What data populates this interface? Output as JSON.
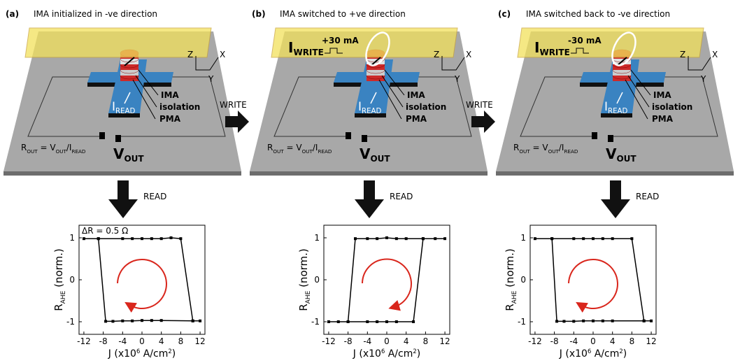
{
  "panels": [
    {
      "label": "(a)",
      "title": "IMA initialized in -ve direction",
      "ima": "IMA",
      "isolation": "isolation",
      "pma": "PMA",
      "i_read": [
        "I",
        "READ"
      ],
      "r_out": [
        "R",
        "OUT",
        " = V",
        "OUT",
        "/I",
        "READ"
      ],
      "v_out": [
        "V",
        "OUT"
      ],
      "axes": [
        "Z",
        "X",
        "Y"
      ],
      "read": "READ"
    },
    {
      "label": "(b)",
      "title": "IMA switched to +ve direction",
      "ima": "IMA",
      "isolation": "isolation",
      "pma": "PMA",
      "i_read": [
        "I",
        "READ"
      ],
      "r_out": [
        "R",
        "OUT",
        " = V",
        "OUT",
        "/I",
        "READ"
      ],
      "v_out": [
        "V",
        "OUT"
      ],
      "axes": [
        "Z",
        "X",
        "Y"
      ],
      "read": "READ",
      "write": "WRITE",
      "i_write": [
        "I",
        "WRITE"
      ],
      "current": "+30 mA"
    },
    {
      "label": "(c)",
      "title": "IMA switched back to -ve direction",
      "ima": "IMA",
      "isolation": "isolation",
      "pma": "PMA",
      "i_read": [
        "I",
        "READ"
      ],
      "r_out": [
        "R",
        "OUT",
        " = V",
        "OUT",
        "/I",
        "READ"
      ],
      "v_out": [
        "V",
        "OUT"
      ],
      "axes": [
        "Z",
        "X",
        "Y"
      ],
      "read": "READ",
      "write": "WRITE",
      "i_write": [
        "I",
        "WRITE"
      ],
      "current": "-30 mA"
    }
  ],
  "chart_data": [
    {
      "type": "line",
      "color": "#000000",
      "annotation": "ΔR = 0.5 Ω",
      "y_label": [
        "R",
        "AHE",
        " (norm.)"
      ],
      "x_label": [
        "J (x10",
        "6",
        " A/cm",
        "2",
        ")"
      ],
      "x": [
        -12,
        -9,
        -4,
        -2,
        0,
        2,
        4,
        6,
        8,
        10.5,
        12,
        10.5,
        4,
        2,
        0,
        -2,
        -4,
        -6,
        -7.5,
        -9
      ],
      "values": [
        0.98,
        0.98,
        0.98,
        0.98,
        0.98,
        0.98,
        0.98,
        1.0,
        0.98,
        -0.98,
        -0.98,
        -0.98,
        -0.97,
        -0.97,
        -0.97,
        -0.98,
        -0.98,
        -0.99,
        -0.99,
        0.98
      ],
      "xlim": [
        -13,
        13
      ],
      "ylim": [
        -1.3,
        1.3
      ],
      "xticks": [
        -12,
        -8,
        -4,
        0,
        4,
        8,
        12
      ],
      "yticks": [
        -1,
        0,
        1
      ]
    },
    {
      "type": "line",
      "color": "#000000",
      "y_label": [
        "R",
        "AHE",
        " (norm.)"
      ],
      "x_label": [
        "J (x10",
        "6",
        " A/cm",
        "2",
        ")"
      ],
      "x": [
        -12,
        -10,
        -8,
        -6.5,
        -4,
        -2,
        0,
        2,
        4,
        7.5,
        10,
        12,
        7.5,
        5.5,
        2,
        0,
        -2,
        -4,
        -8
      ],
      "values": [
        -1,
        -1,
        -1,
        0.98,
        0.98,
        0.98,
        1.0,
        0.98,
        0.98,
        0.98,
        0.98,
        0.98,
        0.98,
        -1,
        -1,
        -1,
        -1,
        -1,
        -1
      ],
      "xlim": [
        -13,
        13
      ],
      "ylim": [
        -1.3,
        1.3
      ],
      "xticks": [
        -12,
        -8,
        -4,
        0,
        4,
        8,
        12
      ],
      "yticks": [
        -1,
        0,
        1
      ]
    },
    {
      "type": "line",
      "color": "#000000",
      "y_label": [
        "R",
        "AHE",
        " (norm.)"
      ],
      "x_label": [
        "J (x10",
        "6",
        " A/cm",
        "2",
        ")"
      ],
      "x": [
        -12,
        -8.5,
        -4,
        -2,
        0,
        2,
        4,
        8,
        10.5,
        12,
        10.5,
        4,
        2,
        0,
        -2,
        -4,
        -6,
        -7.5,
        -8.5
      ],
      "values": [
        0.98,
        0.98,
        0.98,
        0.98,
        0.98,
        0.98,
        0.98,
        0.98,
        -0.98,
        -0.98,
        -0.98,
        -0.98,
        -0.98,
        -0.98,
        -0.98,
        -0.99,
        -0.99,
        -0.99,
        0.98
      ],
      "xlim": [
        -13,
        13
      ],
      "ylim": [
        -1.3,
        1.3
      ],
      "xticks": [
        -12,
        -8,
        -4,
        0,
        4,
        8,
        12
      ],
      "yticks": [
        -1,
        0,
        1
      ]
    }
  ]
}
